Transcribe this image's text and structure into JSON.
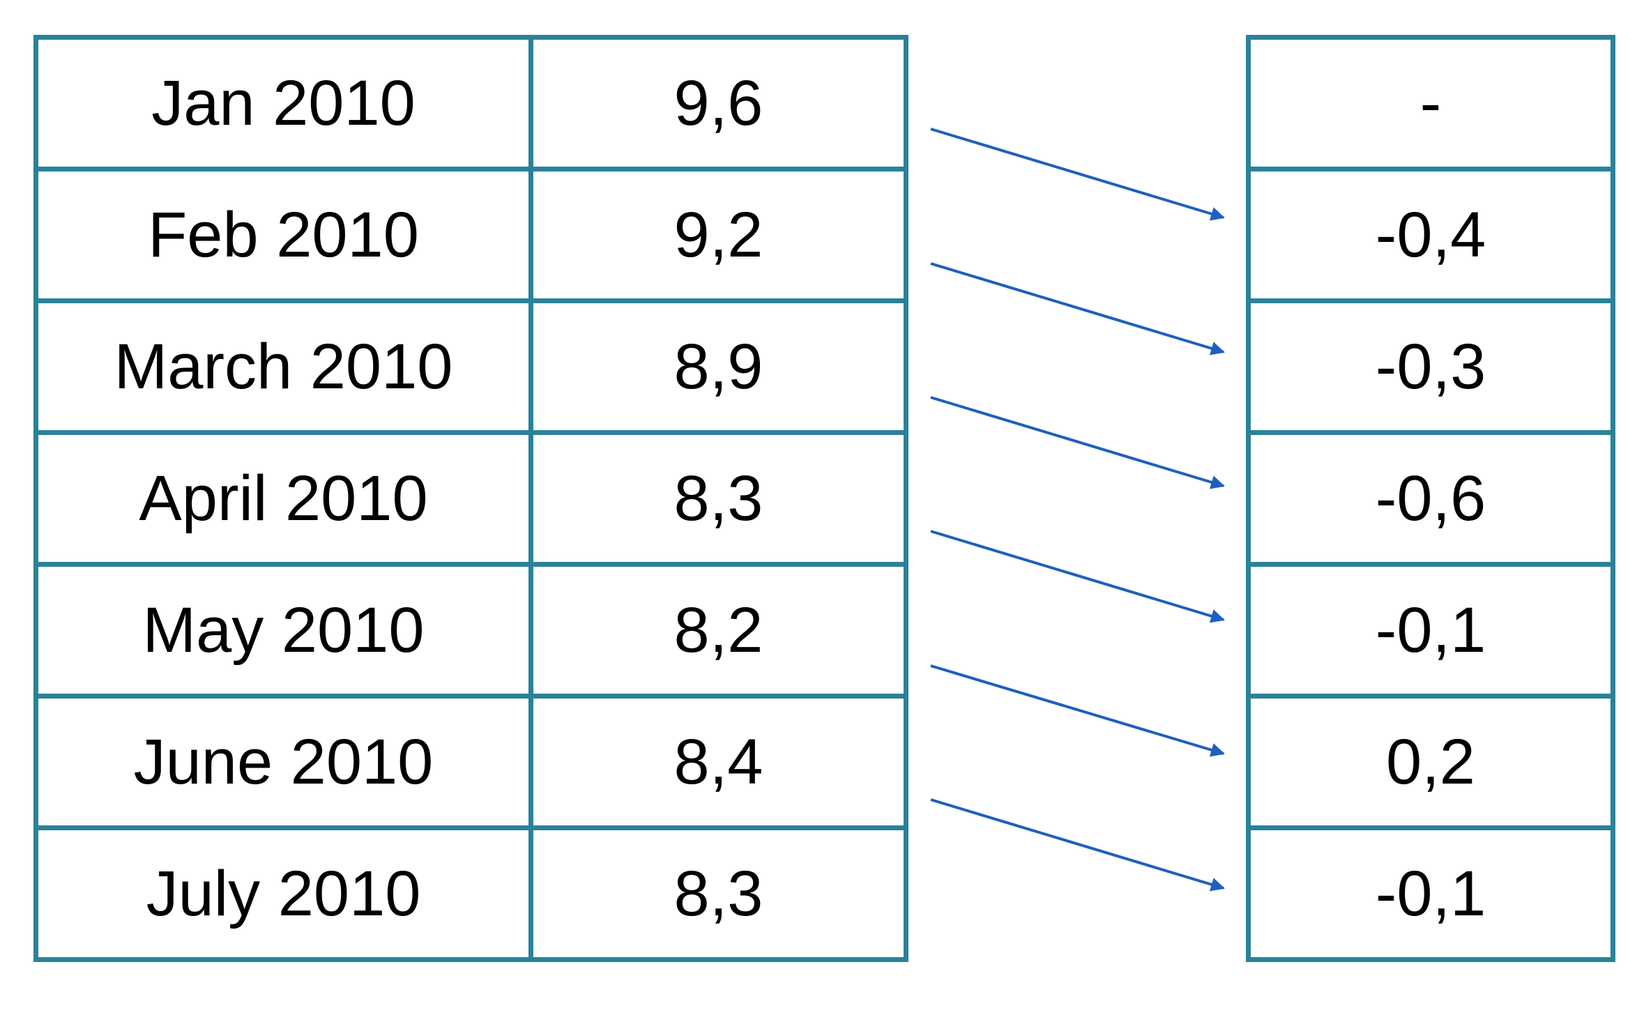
{
  "table": {
    "rows": [
      {
        "month": "Jan 2010",
        "value": "9,6",
        "change": "-"
      },
      {
        "month": "Feb 2010",
        "value": "9,2",
        "change": "-0,4"
      },
      {
        "month": "March 2010",
        "value": "8,9",
        "change": "-0,3"
      },
      {
        "month": "April 2010",
        "value": "8,3",
        "change": "-0,6"
      },
      {
        "month": "May 2010",
        "value": "8,2",
        "change": "-0,1"
      },
      {
        "month": "June 2010",
        "value": "8,4",
        "change": "0,2"
      },
      {
        "month": "July 2010",
        "value": "8,3",
        "change": "-0,1"
      }
    ]
  },
  "colors": {
    "border": "#2a8299",
    "arrow": "#1f5fbf",
    "text": "#000000"
  }
}
